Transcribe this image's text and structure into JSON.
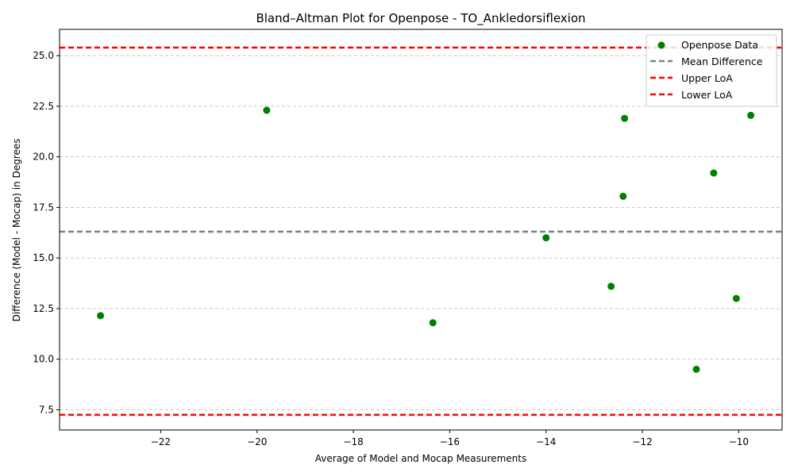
{
  "chart_data": {
    "type": "scatter",
    "title": "Bland–Altman Plot for Openpose - TO_Ankledorsiflexion",
    "xlabel": "Average of Model and Mocap Measurements",
    "ylabel": "Difference (Model - Mocap) in Degrees",
    "xlim": [
      -24.1,
      -9.1
    ],
    "ylim": [
      6.5,
      26.3
    ],
    "xticks": [
      -22,
      -20,
      -18,
      -16,
      -14,
      -12,
      -10
    ],
    "yticks": [
      7.5,
      10.0,
      12.5,
      15.0,
      17.5,
      20.0,
      22.5,
      25.0
    ],
    "grid": "y-dashed",
    "legend_position": "top-right",
    "series": [
      {
        "name": "Openpose Data",
        "color": "#008000",
        "points": [
          {
            "x": -23.25,
            "y": 12.15
          },
          {
            "x": -19.8,
            "y": 22.3
          },
          {
            "x": -16.35,
            "y": 11.8
          },
          {
            "x": -14.0,
            "y": 16.0
          },
          {
            "x": -12.65,
            "y": 13.6
          },
          {
            "x": -12.4,
            "y": 18.05
          },
          {
            "x": -12.37,
            "y": 21.9
          },
          {
            "x": -10.88,
            "y": 9.5
          },
          {
            "x": -10.52,
            "y": 19.2
          },
          {
            "x": -10.05,
            "y": 13.0
          },
          {
            "x": -9.75,
            "y": 22.05
          }
        ]
      }
    ],
    "reference_lines": [
      {
        "name": "Mean Difference",
        "y": 16.3,
        "color": "#808080"
      },
      {
        "name": "Upper LoA",
        "y": 25.4,
        "color": "#ff0000"
      },
      {
        "name": "Lower LoA",
        "y": 7.25,
        "color": "#ff0000"
      }
    ]
  }
}
